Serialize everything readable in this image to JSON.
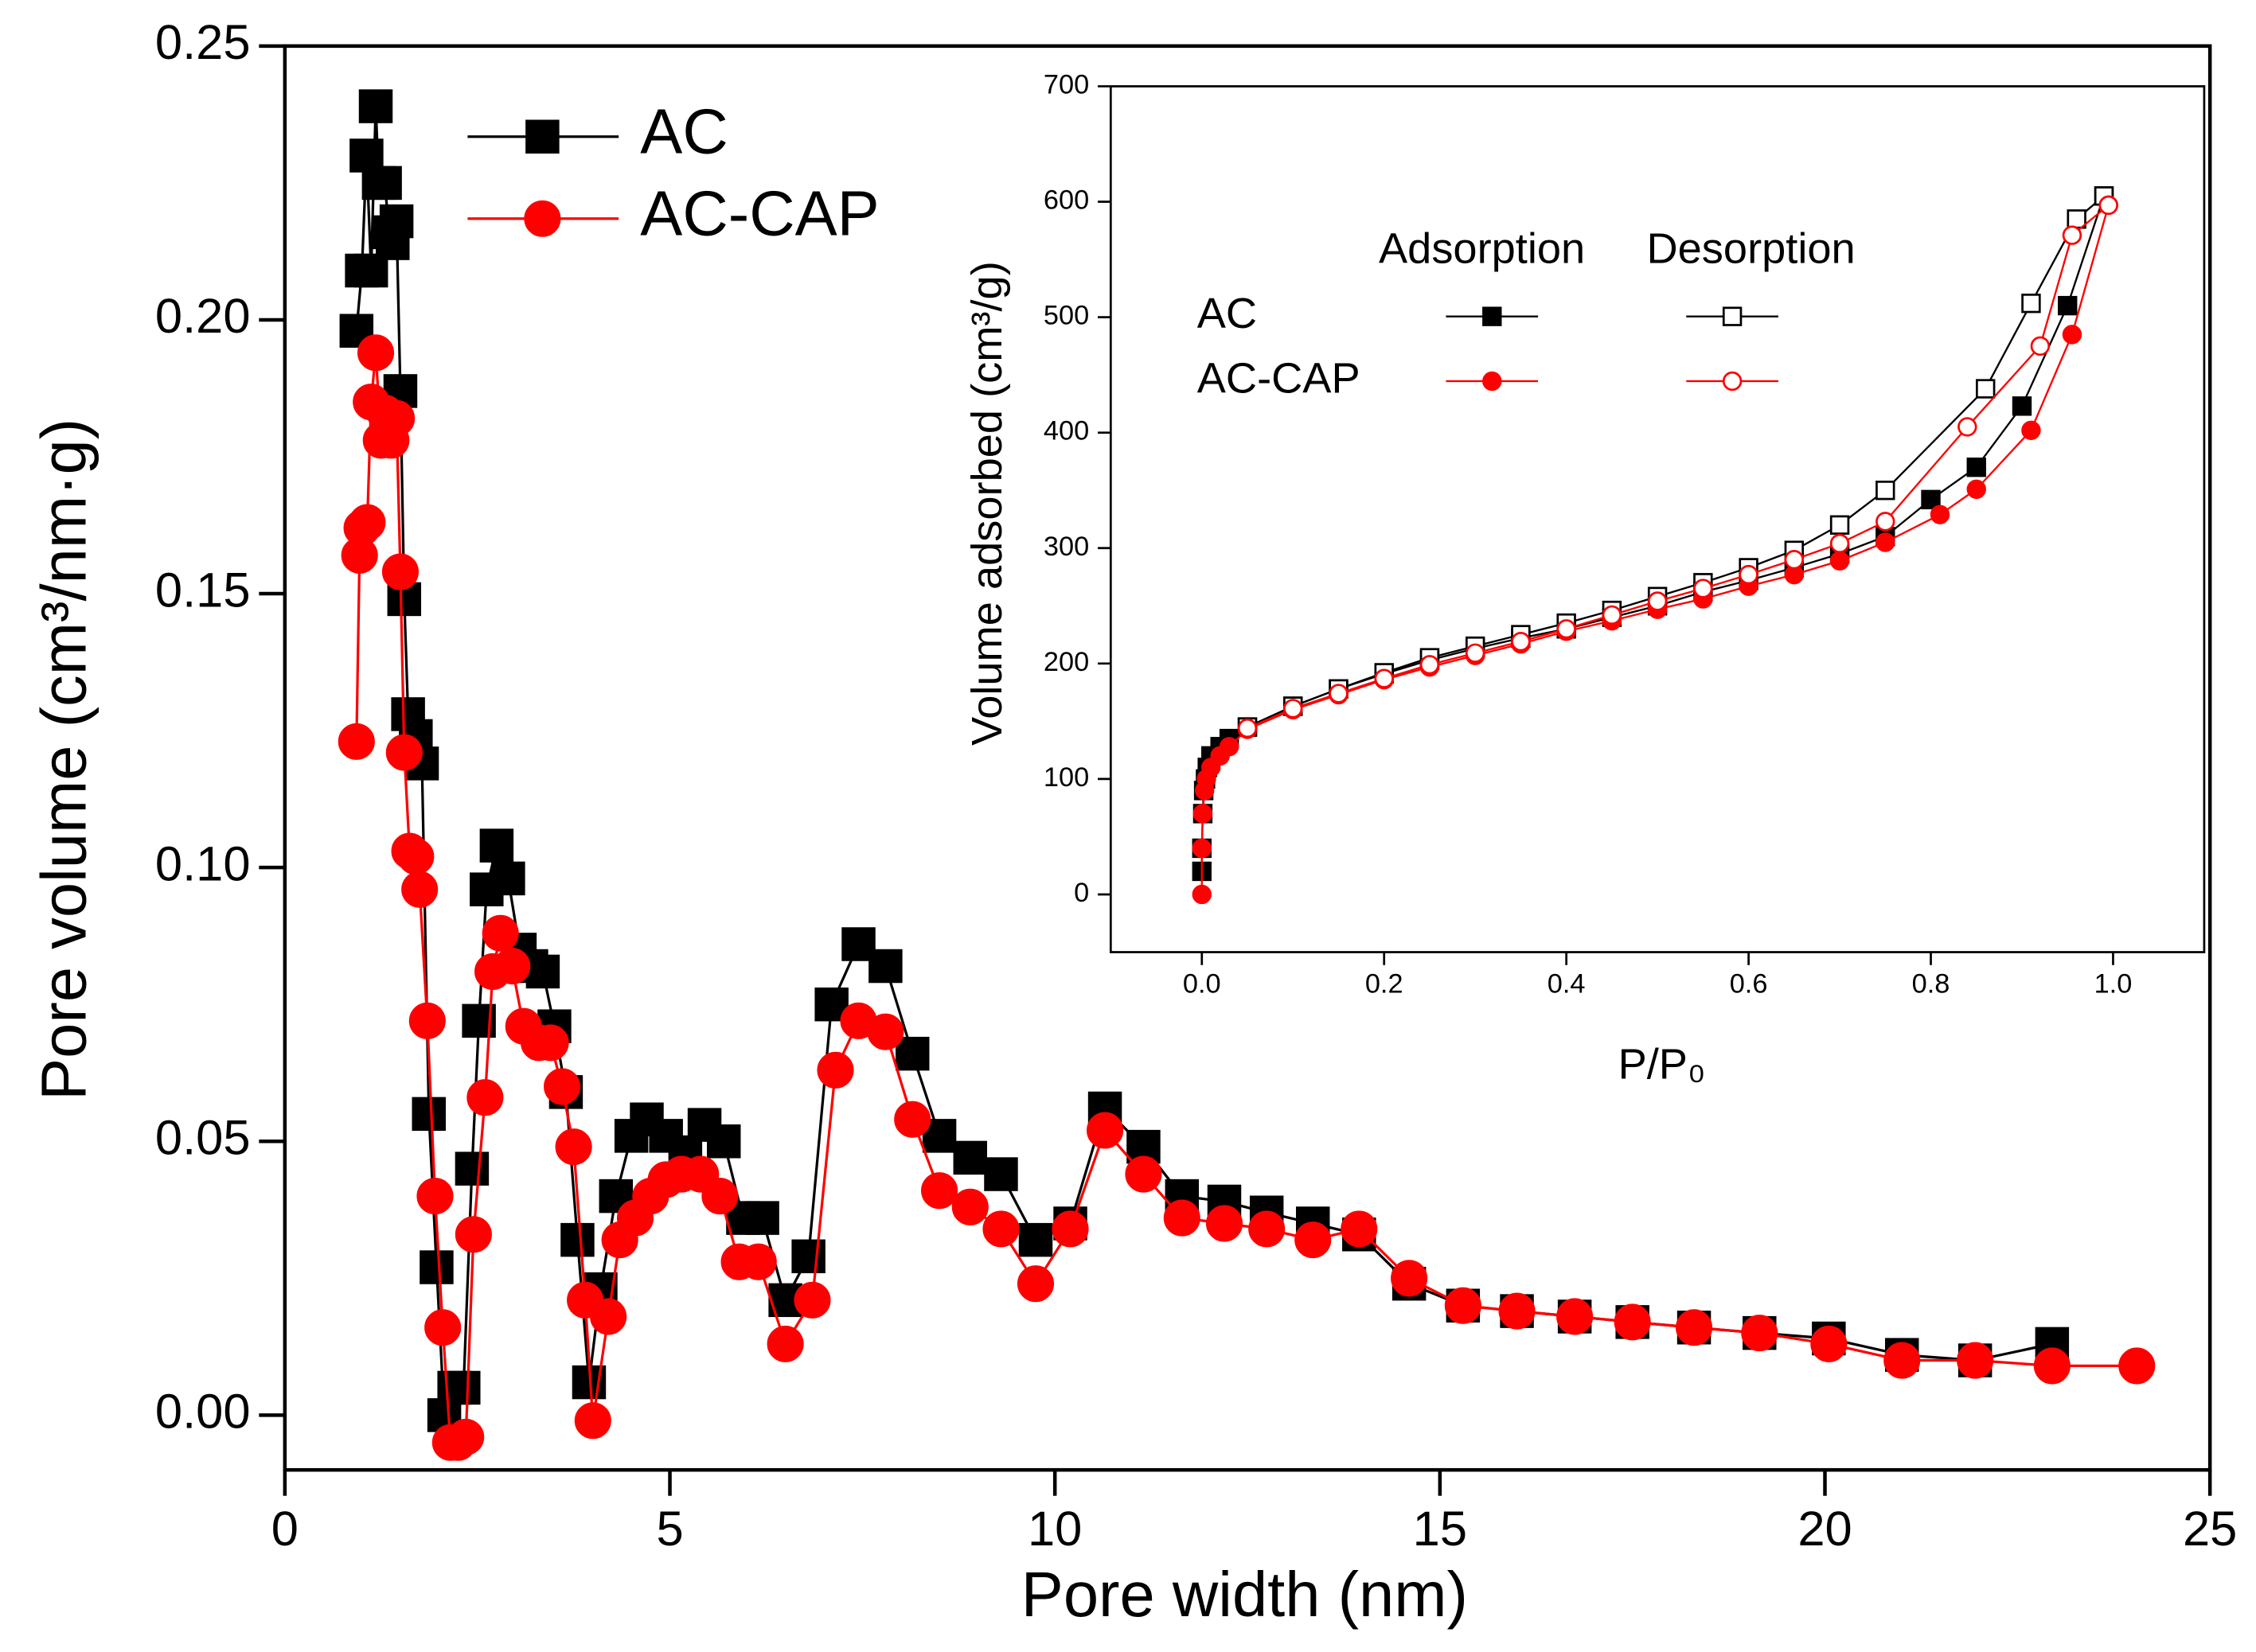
{
  "chart_data": [
    {
      "type": "line",
      "xlabel": "Pore width (nm)",
      "ylabel": "Pore volume (cm³/nm·g)",
      "xlim": [
        0,
        25
      ],
      "ylim": [
        -0.01,
        0.25
      ],
      "xticks": [
        0,
        5,
        10,
        15,
        20,
        25
      ],
      "yticks": [
        {
          "value": 0,
          "label": "0.00"
        },
        0.05,
        {
          "value": 0.1,
          "label": "0.10"
        },
        0.15,
        {
          "value": 0.2,
          "label": "0.20"
        },
        0.25
      ],
      "legend": "upper left",
      "series": [
        {
          "name": "AC",
          "color": "#000000",
          "marker": "square",
          "x": [
            0.93,
            1.0,
            1.06,
            1.12,
            1.18,
            1.22,
            1.3,
            1.35,
            1.4,
            1.45,
            1.5,
            1.55,
            1.6,
            1.7,
            1.78,
            1.87,
            1.97,
            2.07,
            2.2,
            2.32,
            2.43,
            2.52,
            2.62,
            2.75,
            2.9,
            3.05,
            3.2,
            3.35,
            3.5,
            3.65,
            3.8,
            3.95,
            4.1,
            4.3,
            4.5,
            4.7,
            4.95,
            5.2,
            5.45,
            5.7,
            5.95,
            6.2,
            6.5,
            6.8,
            7.1,
            7.45,
            7.8,
            8.15,
            8.5,
            8.9,
            9.3,
            9.75,
            10.2,
            10.65,
            11.15,
            11.65,
            12.2,
            12.75,
            13.35,
            13.95,
            14.6,
            15.3,
            16.0,
            16.75,
            17.5,
            18.3,
            19.15,
            20.05,
            21.0,
            21.95,
            22.95
          ],
          "values": [
            0.198,
            0.209,
            0.23,
            0.209,
            0.239,
            0.225,
            0.225,
            0.216,
            0.214,
            0.218,
            0.187,
            0.149,
            0.128,
            0.124,
            0.119,
            0.055,
            0.027,
            0.0,
            0.005,
            0.005,
            0.045,
            0.072,
            0.096,
            0.104,
            0.098,
            0.085,
            0.082,
            0.081,
            0.071,
            0.059,
            0.032,
            0.006,
            0.023,
            0.04,
            0.051,
            0.054,
            0.051,
            0.048,
            0.053,
            0.05,
            0.036,
            0.036,
            0.021,
            0.029,
            0.075,
            0.086,
            0.082,
            0.066,
            0.051,
            0.047,
            0.044,
            0.032,
            0.035,
            0.056,
            0.049,
            0.04,
            0.039,
            0.037,
            0.035,
            0.033,
            0.024,
            0.02,
            0.019,
            0.018,
            0.017,
            0.016,
            0.015,
            0.014,
            0.011,
            0.01,
            0.013
          ]
        },
        {
          "name": "AC-CAP",
          "color": "#ff0000",
          "marker": "circle",
          "x": [
            0.93,
            0.97,
            1.0,
            1.07,
            1.12,
            1.18,
            1.25,
            1.3,
            1.38,
            1.45,
            1.5,
            1.55,
            1.62,
            1.7,
            1.75,
            1.85,
            1.95,
            2.05,
            2.15,
            2.25,
            2.35,
            2.45,
            2.6,
            2.7,
            2.8,
            2.95,
            3.1,
            3.3,
            3.45,
            3.6,
            3.75,
            3.9,
            4.0,
            4.2,
            4.35,
            4.55,
            4.75,
            4.95,
            5.15,
            5.4,
            5.65,
            5.9,
            6.15,
            6.5,
            6.85,
            7.15,
            7.45,
            7.8,
            8.15,
            8.5,
            8.9,
            9.3,
            9.75,
            10.2,
            10.65,
            11.15,
            11.65,
            12.2,
            12.75,
            13.35,
            13.95,
            14.6,
            15.3,
            16.0,
            16.75,
            17.5,
            18.3,
            19.15,
            20.05,
            21.0,
            21.95,
            22.95,
            24.05
          ],
          "values": [
            0.123,
            0.157,
            0.162,
            0.163,
            0.185,
            0.194,
            0.178,
            0.183,
            0.178,
            0.182,
            0.154,
            0.121,
            0.103,
            0.102,
            0.096,
            0.072,
            0.04,
            0.016,
            -0.005,
            -0.005,
            -0.004,
            0.033,
            0.058,
            0.081,
            0.088,
            0.082,
            0.071,
            0.068,
            0.068,
            0.06,
            0.049,
            0.021,
            -0.001,
            0.018,
            0.032,
            0.036,
            0.04,
            0.043,
            0.044,
            0.044,
            0.04,
            0.028,
            0.028,
            0.013,
            0.021,
            0.063,
            0.072,
            0.07,
            0.054,
            0.041,
            0.038,
            0.034,
            0.024,
            0.034,
            0.052,
            0.044,
            0.036,
            0.035,
            0.034,
            0.032,
            0.034,
            0.025,
            0.02,
            0.019,
            0.018,
            0.017,
            0.016,
            0.015,
            0.013,
            0.01,
            0.01,
            0.009,
            0.009
          ]
        }
      ]
    },
    {
      "type": "line",
      "inset": true,
      "xlabel": "P/P₀",
      "ylabel": "Volume adsorbed  (cm³/g)",
      "xlim": [
        -0.1,
        1.1
      ],
      "ylim": [
        -50,
        700
      ],
      "xticks": [
        {
          "value": 0,
          "label": "0.0"
        },
        0.2,
        0.4,
        0.6,
        0.8,
        {
          "value": 1,
          "label": "1.0"
        }
      ],
      "yticks": [
        0,
        100,
        200,
        300,
        400,
        500,
        600,
        700
      ],
      "series": [
        {
          "name": "AC",
          "branch": "Adsorption",
          "color": "#000000",
          "marker": "square",
          "filled": true,
          "x": [
            0.0,
            0.0,
            0.001,
            0.002,
            0.004,
            0.006,
            0.01,
            0.02,
            0.03,
            0.05,
            0.1,
            0.15,
            0.2,
            0.25,
            0.3,
            0.35,
            0.4,
            0.45,
            0.5,
            0.55,
            0.6,
            0.65,
            0.7,
            0.75,
            0.8,
            0.85,
            0.9,
            0.95,
            0.99
          ],
          "values": [
            20,
            40,
            70,
            90,
            100,
            110,
            120,
            128,
            135,
            145,
            163,
            178,
            191,
            203,
            213,
            222,
            230,
            240,
            250,
            262,
            272,
            283,
            295,
            310,
            342,
            370,
            423,
            510,
            605
          ]
        },
        {
          "name": "AC",
          "branch": "Desorption",
          "color": "#000000",
          "marker": "square",
          "filled": false,
          "x": [
            0.99,
            0.96,
            0.91,
            0.86,
            0.75,
            0.7,
            0.65,
            0.6,
            0.55,
            0.5,
            0.45,
            0.4,
            0.35,
            0.3,
            0.25,
            0.2,
            0.15,
            0.1,
            0.05
          ],
          "values": [
            605,
            585,
            512,
            438,
            350,
            320,
            298,
            283,
            270,
            258,
            246,
            235,
            225,
            215,
            205,
            192,
            178,
            163,
            145
          ]
        },
        {
          "name": "AC-CAP",
          "branch": "Adsorption",
          "color": "#ff0000",
          "marker": "circle",
          "filled": true,
          "x": [
            0.0,
            0.0,
            0.001,
            0.003,
            0.005,
            0.01,
            0.02,
            0.03,
            0.05,
            0.1,
            0.15,
            0.2,
            0.25,
            0.3,
            0.35,
            0.4,
            0.45,
            0.5,
            0.55,
            0.6,
            0.65,
            0.7,
            0.75,
            0.81,
            0.85,
            0.91,
            0.955,
            0.995
          ],
          "values": [
            0,
            40,
            70,
            90,
            100,
            110,
            120,
            128,
            143,
            160,
            173,
            186,
            197,
            207,
            217,
            228,
            237,
            247,
            256,
            267,
            277,
            289,
            305,
            329,
            351,
            402,
            485,
            597
          ]
        },
        {
          "name": "AC-CAP",
          "branch": "Desorption",
          "color": "#ff0000",
          "marker": "circle",
          "filled": false,
          "x": [
            0.995,
            0.955,
            0.92,
            0.84,
            0.75,
            0.7,
            0.65,
            0.6,
            0.55,
            0.5,
            0.45,
            0.4,
            0.35,
            0.3,
            0.25,
            0.2,
            0.15,
            0.1,
            0.05
          ],
          "values": [
            597,
            571,
            475,
            405,
            323,
            304,
            290,
            277,
            265,
            254,
            242,
            230,
            219,
            209,
            199,
            187,
            174,
            161,
            144
          ]
        }
      ]
    }
  ]
}
